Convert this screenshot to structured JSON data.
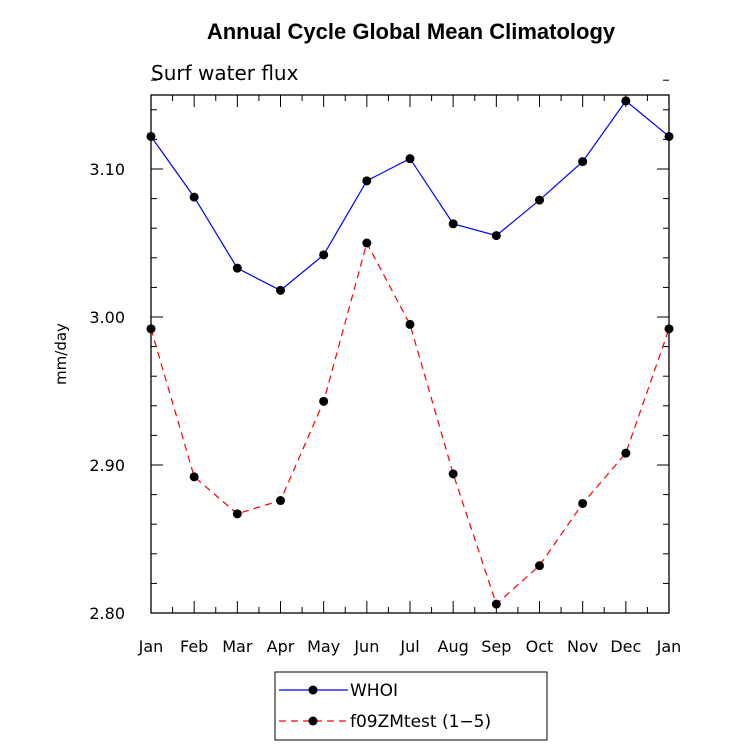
{
  "chart_data": {
    "type": "line",
    "title": "Annual Cycle Global Mean Climatology",
    "subtitle": "Surf water flux",
    "ylabel": "mm/day",
    "xlabel": "",
    "categories": [
      "Jan",
      "Feb",
      "Mar",
      "Apr",
      "May",
      "Jun",
      "Jul",
      "Aug",
      "Sep",
      "Oct",
      "Nov",
      "Dec",
      "Jan"
    ],
    "ylim": [
      2.8,
      3.15
    ],
    "yticks": [
      2.8,
      2.9,
      3.0,
      3.1
    ],
    "ytick_labels": [
      "2.80",
      "2.90",
      "3.00",
      "3.10"
    ],
    "legend_position": "bottom-center",
    "series": [
      {
        "name": "WHOI",
        "color": "#0000ff",
        "dash": "solid",
        "values": [
          3.122,
          3.081,
          3.033,
          3.018,
          3.042,
          3.092,
          3.107,
          3.063,
          3.055,
          3.079,
          3.105,
          3.146,
          3.122
        ]
      },
      {
        "name": "f09ZMtest (1−5)",
        "color": "#ff0000",
        "dash": "dashed",
        "values": [
          2.992,
          2.892,
          2.867,
          2.876,
          2.943,
          3.05,
          2.995,
          2.894,
          2.806,
          2.832,
          2.874,
          2.908,
          2.992
        ]
      }
    ]
  }
}
